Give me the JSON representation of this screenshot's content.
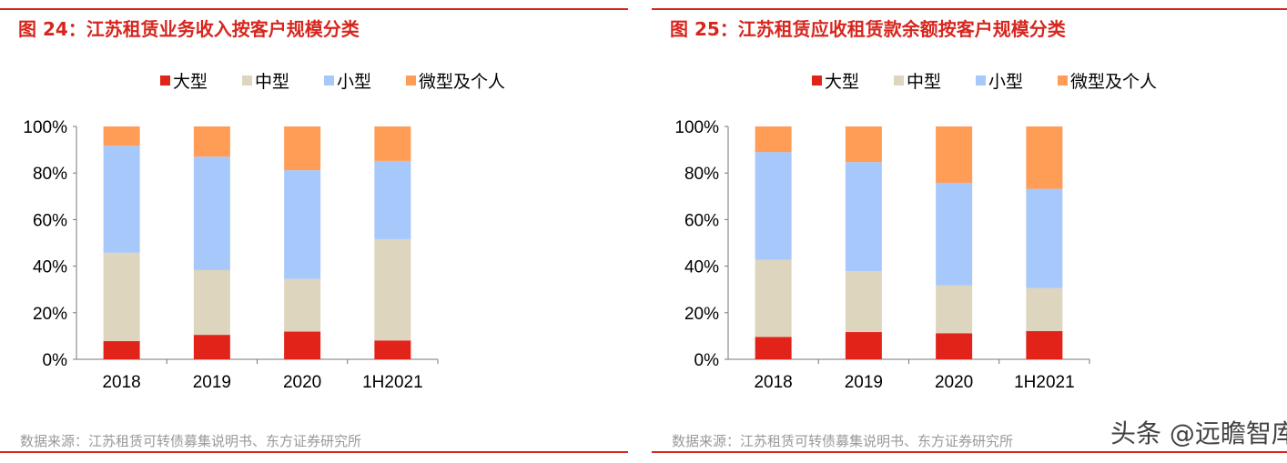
{
  "watermark": "头条 @远瞻智库",
  "colors": {
    "large": "#e2231a",
    "medium": "#ddd5bd",
    "small": "#a6c8fb",
    "micro": "#ff9c56",
    "accent": "#d7261e"
  },
  "chart_data": [
    {
      "type": "bar",
      "stacked": true,
      "title": "图 24：江苏租赁业务收入按客户规模分类",
      "source": "数据来源：江苏租赁可转债募集说明书、东方证券研究所",
      "categories": [
        "2018",
        "2019",
        "2020",
        "1H2021"
      ],
      "yticks": [
        "0%",
        "20%",
        "40%",
        "60%",
        "80%",
        "100%"
      ],
      "ylim": [
        0,
        100
      ],
      "legend": "top",
      "grid": false,
      "series": [
        {
          "name": "大型",
          "values": [
            7.8,
            10.5,
            11.9,
            8.1
          ]
        },
        {
          "name": "中型",
          "values": [
            38.0,
            27.8,
            22.6,
            43.5
          ]
        },
        {
          "name": "小型",
          "values": [
            45.9,
            48.7,
            46.7,
            33.6
          ]
        },
        {
          "name": "微型及个人",
          "values": [
            8.3,
            13.0,
            18.8,
            14.8
          ]
        }
      ]
    },
    {
      "type": "bar",
      "stacked": true,
      "title": "图 25：江苏租赁应收租赁款余额按客户规模分类",
      "source": "数据来源：江苏租赁可转债募集说明书、东方证券研究所",
      "categories": [
        "2018",
        "2019",
        "2020",
        "1H2021"
      ],
      "yticks": [
        "0%",
        "20%",
        "40%",
        "60%",
        "80%",
        "100%"
      ],
      "ylim": [
        0,
        100
      ],
      "legend": "top",
      "grid": false,
      "series": [
        {
          "name": "大型",
          "values": [
            9.6,
            11.7,
            11.2,
            12.1
          ]
        },
        {
          "name": "中型",
          "values": [
            33.1,
            26.2,
            20.5,
            18.5
          ]
        },
        {
          "name": "小型",
          "values": [
            46.3,
            46.8,
            44.1,
            42.6
          ]
        },
        {
          "name": "微型及个人",
          "values": [
            11.0,
            15.3,
            24.2,
            26.8
          ]
        }
      ]
    }
  ]
}
